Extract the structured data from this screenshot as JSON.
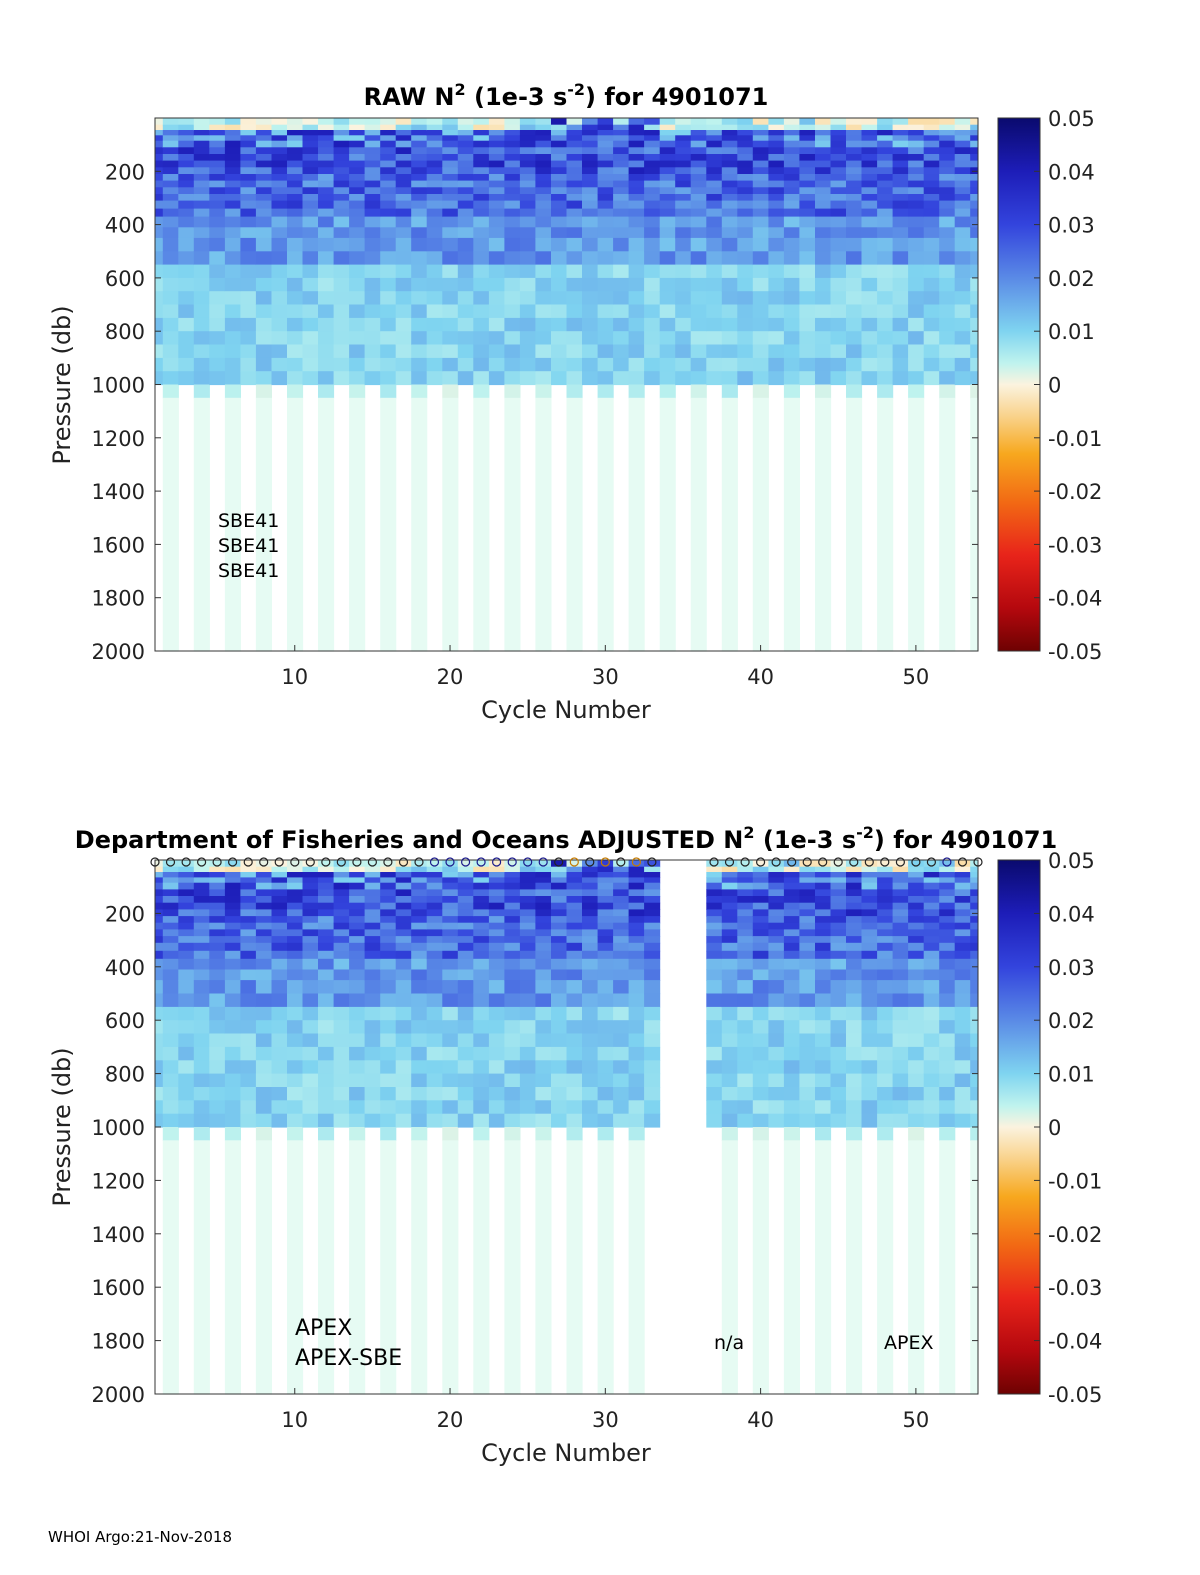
{
  "chart_data": [
    {
      "type": "heatmap",
      "id": "raw",
      "title_prefix": "RAW N",
      "title_sup": "2",
      "title_mid": " (1e-3 s",
      "title_sup2": "-2",
      "title_suffix": ") for 4901071",
      "xlabel": "Cycle Number",
      "ylabel": "Pressure (db)",
      "xlim": [
        1,
        54
      ],
      "ylim": [
        0,
        2000
      ],
      "xticks": [
        "10",
        "20",
        "30",
        "40",
        "50"
      ],
      "yticks": [
        "200",
        "400",
        "600",
        "800",
        "1000",
        "1200",
        "1400",
        "1600",
        "1800",
        "2000"
      ],
      "colorbar": {
        "range": [
          -0.05,
          0.05
        ],
        "ticks": [
          "0.05",
          "0.04",
          "0.03",
          "0.02",
          "0.01",
          "0",
          "-0.01",
          "-0.02",
          "-0.03",
          "-0.04",
          "-0.05"
        ]
      },
      "annotations": [
        "SBE41",
        "SBE41",
        "SBE41"
      ],
      "missing_cycles": []
    },
    {
      "type": "heatmap",
      "id": "adjusted",
      "title_prefix": "Department of Fisheries and Oceans  ADJUSTED N",
      "title_sup": "2",
      "title_mid": " (1e-3 s",
      "title_sup2": "-2",
      "title_suffix": ") for 4901071",
      "xlabel": "Cycle Number",
      "ylabel": "Pressure (db)",
      "xlim": [
        1,
        54
      ],
      "ylim": [
        0,
        2000
      ],
      "xticks": [
        "10",
        "20",
        "30",
        "40",
        "50"
      ],
      "yticks": [
        "200",
        "400",
        "600",
        "800",
        "1000",
        "1200",
        "1400",
        "1600",
        "1800",
        "2000"
      ],
      "colorbar": {
        "range": [
          -0.05,
          0.05
        ],
        "ticks": [
          "0.05",
          "0.04",
          "0.03",
          "0.02",
          "0.01",
          "0",
          "-0.01",
          "-0.02",
          "-0.03",
          "-0.04",
          "-0.05"
        ]
      },
      "annotations_left": [
        "APEX",
        "APEX-SBE"
      ],
      "annotation_mid": "n/a",
      "annotation_right": "APEX",
      "missing_cycles": [
        34,
        35,
        36
      ],
      "qc_markers": true
    }
  ],
  "footer": "WHOI Argo:21-Nov-2018"
}
